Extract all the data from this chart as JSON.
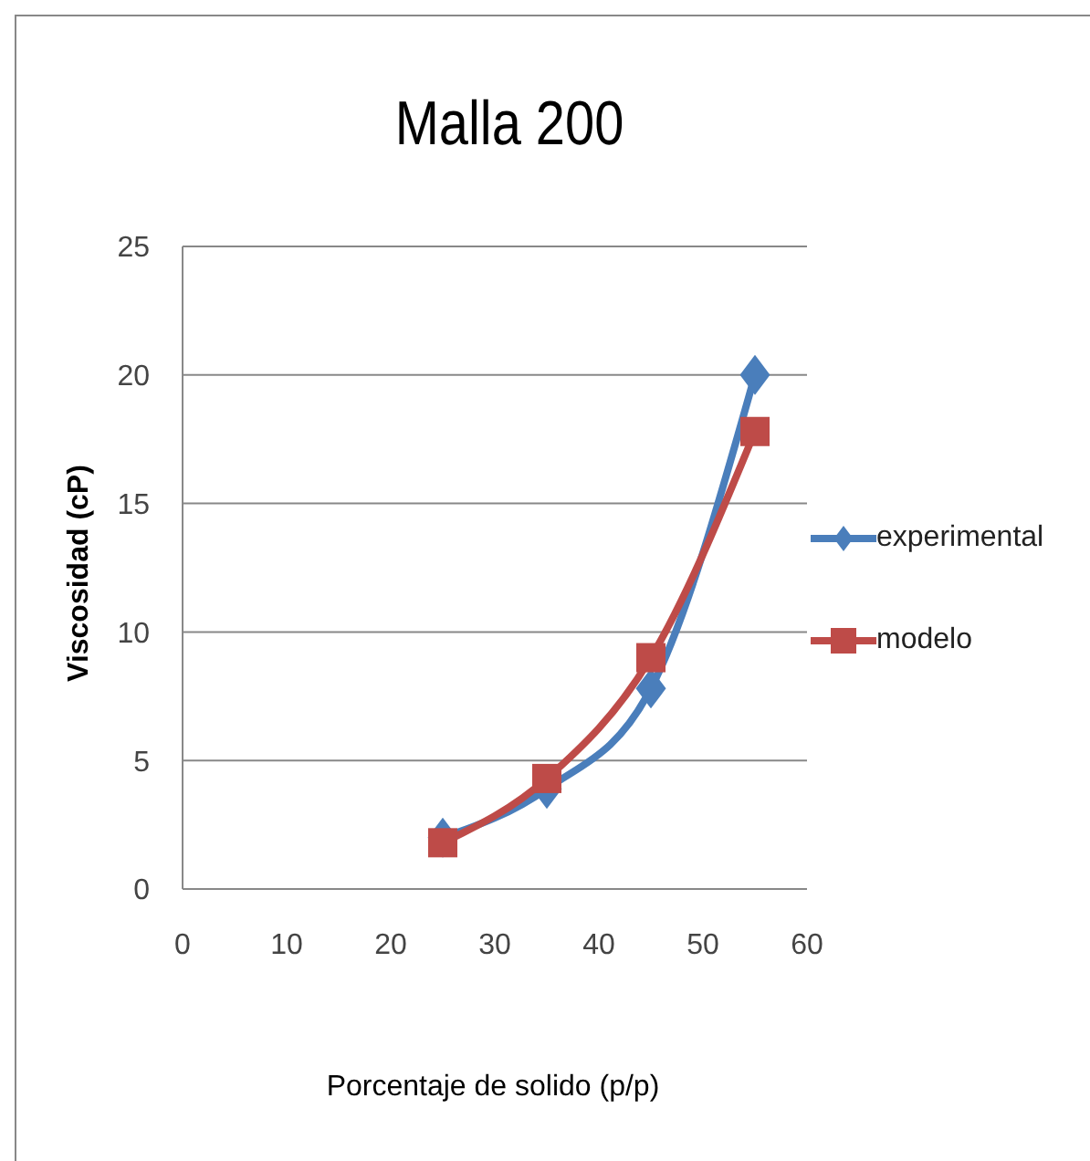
{
  "chart_data": {
    "type": "line",
    "title": "Malla 200",
    "xlabel": "Porcentaje de solido (p/p)",
    "ylabel": "Viscosidad (cP)",
    "x": [
      25,
      35,
      45,
      55
    ],
    "series": [
      {
        "name": "experimental",
        "color": "#4a7ebb",
        "marker": "diamond",
        "values": [
          2,
          3.9,
          7.8,
          20
        ]
      },
      {
        "name": "modelo",
        "color": "#be4b48",
        "marker": "square",
        "values": [
          1.8,
          4.3,
          9,
          17.8
        ]
      }
    ],
    "xlim": [
      0,
      60
    ],
    "xticks": [
      0,
      10,
      20,
      30,
      40,
      50,
      60
    ],
    "ylim": [
      0,
      25
    ],
    "yticks": [
      0,
      5,
      10,
      15,
      20,
      25
    ],
    "grid": "y",
    "legend": "right"
  }
}
